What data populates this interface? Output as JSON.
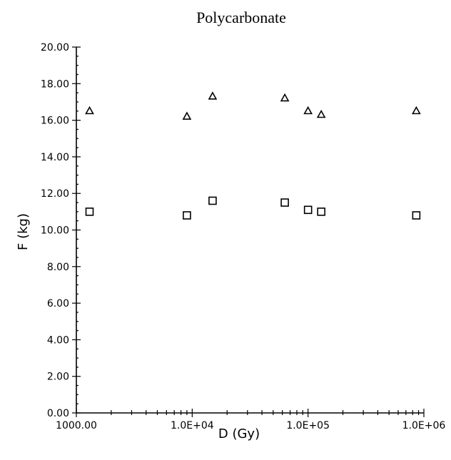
{
  "chart_data": {
    "type": "scatter",
    "title": "Polycarbonate",
    "xlabel": "D (Gy)",
    "ylabel": "F (kg)",
    "x_scale": "log",
    "xlim": [
      1000,
      1000000
    ],
    "ylim": [
      0,
      20
    ],
    "x_tick_labels": [
      "1000.00",
      "1.0E+04",
      "1.0E+05",
      "1.0E+06"
    ],
    "y_tick_labels": [
      "0.00",
      "2.00",
      "4.00",
      "6.00",
      "8.00",
      "10.00",
      "12.00",
      "14.00",
      "16.00",
      "18.00",
      "20.00"
    ],
    "grid": false,
    "series": [
      {
        "marker": "triangle",
        "points": [
          {
            "x": 1300,
            "y": 16.5
          },
          {
            "x": 9000,
            "y": 16.2
          },
          {
            "x": 15000,
            "y": 17.3
          },
          {
            "x": 63000,
            "y": 17.2
          },
          {
            "x": 100000,
            "y": 16.5
          },
          {
            "x": 130000,
            "y": 16.3
          },
          {
            "x": 860000,
            "y": 16.5
          }
        ]
      },
      {
        "marker": "square",
        "points": [
          {
            "x": 1300,
            "y": 11.0
          },
          {
            "x": 9000,
            "y": 10.8
          },
          {
            "x": 15000,
            "y": 11.6
          },
          {
            "x": 63000,
            "y": 11.5
          },
          {
            "x": 100000,
            "y": 11.1
          },
          {
            "x": 130000,
            "y": 11.0
          },
          {
            "x": 860000,
            "y": 10.8
          }
        ]
      }
    ]
  }
}
